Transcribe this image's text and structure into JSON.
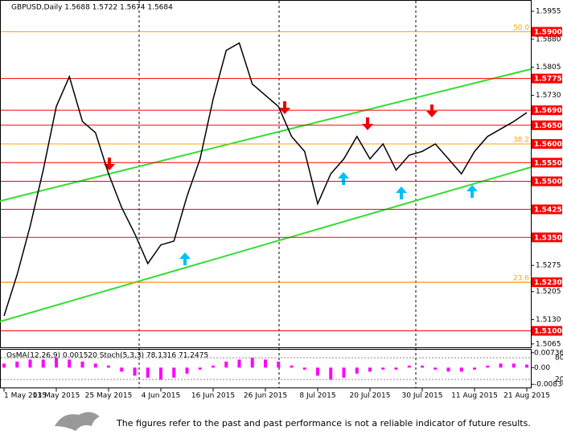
{
  "chart_data": {
    "type": "line",
    "title": "GBPUSD,Daily  1.5688 1.5722 1.5674 1.5684",
    "categories": [
      "1 May 2015",
      null,
      null,
      null,
      "13 May 2015",
      null,
      null,
      null,
      "25 May 2015",
      null,
      null,
      null,
      "4 Jun 2015",
      null,
      null,
      null,
      "16 Jun 2015",
      null,
      null,
      null,
      "26 Jun 2015",
      null,
      null,
      null,
      "8 Jul 2015",
      null,
      null,
      null,
      "20 Jul 2015",
      null,
      null,
      null,
      "30 Jul 2015",
      null,
      null,
      null,
      "11 Aug 2015",
      null,
      null,
      null,
      "21 Aug 2015"
    ],
    "values": [
      1.514,
      1.525,
      1.538,
      1.553,
      1.57,
      1.578,
      1.566,
      1.563,
      1.552,
      1.543,
      1.536,
      1.528,
      1.533,
      1.534,
      1.546,
      1.556,
      1.572,
      1.585,
      1.587,
      1.576,
      1.573,
      1.57,
      1.562,
      1.558,
      1.544,
      1.552,
      1.556,
      1.562,
      1.556,
      1.56,
      1.553,
      1.557,
      1.558,
      1.56,
      1.556,
      1.552,
      1.558,
      1.562,
      1.564,
      1.566,
      1.5684
    ],
    "color": "#000000",
    "ylim": [
      1.5056,
      1.5985
    ],
    "yticks": [
      1.5955,
      {
        "value": 1.588,
        "label": "1.5880"
      },
      1.5805,
      {
        "value": 1.573,
        "label": "1.5730"
      },
      1.5275,
      1.5205,
      {
        "value": 1.513,
        "label": "1.5130"
      },
      1.5065
    ],
    "level_lines": [
      {
        "value": 1.59,
        "label": "1.5900"
      },
      {
        "value": 1.5775,
        "label": "1.5775"
      },
      {
        "value": 1.569,
        "label": "1.5690"
      },
      {
        "value": 1.565,
        "label": "1.5650"
      },
      {
        "value": 1.56,
        "label": "1.5600"
      },
      {
        "value": 1.555,
        "label": "1.5550"
      },
      {
        "value": 1.55,
        "label": "1.5500"
      },
      {
        "value": 1.5425,
        "label": "1.5425"
      },
      {
        "value": 1.535,
        "label": "1.5350"
      },
      {
        "value": 1.523,
        "label": "1.5230"
      },
      {
        "value": 1.51,
        "label": "1.5100"
      }
    ],
    "fibo_levels": [
      {
        "value": 1.59,
        "label": "50.0"
      },
      {
        "value": 1.56,
        "label": "38.2"
      },
      {
        "value": 1.523,
        "label": "23.6"
      }
    ],
    "level_color": "#ff0000",
    "fibo_color": "#ffa500",
    "indicator": {
      "title": "OsMA(12,26,9) 0.001520  Stoch(5,3,3) 78.1316 71.2475",
      "color": "#ff00ff",
      "values": [
        0.002,
        0.003,
        0.004,
        0.004,
        0.005,
        0.004,
        0.003,
        0.002,
        0.001,
        -0.002,
        -0.004,
        -0.005,
        -0.006,
        -0.005,
        -0.003,
        -0.001,
        0.001,
        0.003,
        0.004,
        0.005,
        0.004,
        0.003,
        0.001,
        -0.001,
        -0.004,
        -0.006,
        -0.005,
        -0.003,
        -0.002,
        -0.001,
        -0.001,
        0.001,
        0.001,
        -0.001,
        -0.002,
        -0.002,
        -0.001,
        0.001,
        0.002,
        0.002,
        0.0015
      ],
      "ylim": [
        -0.0095,
        0.0085
      ],
      "yticks": [
        {
          "value": 0.007362,
          "label": "0.007362"
        },
        {
          "value": 0,
          "label": "0.00"
        },
        {
          "value": -0.00836,
          "label": "-0.00836"
        }
      ],
      "stoch_levels": [
        80,
        20
      ]
    }
  },
  "footer": {
    "disclaimer": "The figures refer to the past and past performance is not a reliable indicator of future results."
  }
}
